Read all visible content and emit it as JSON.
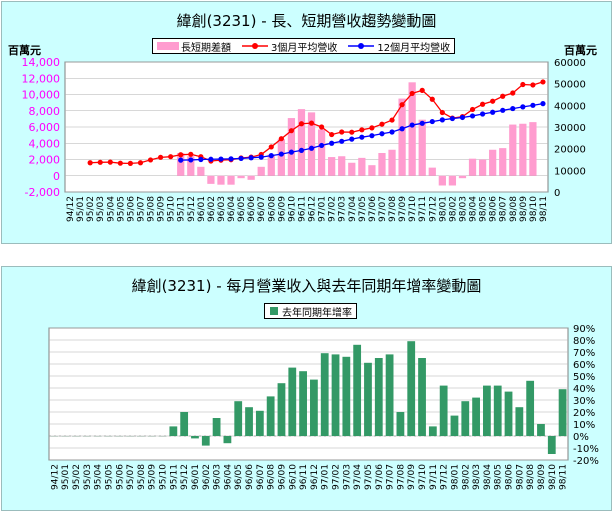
{
  "chart_data": [
    {
      "type": "bar",
      "title": "緯創(3231) -  長、短期營收趨勢變動圖",
      "left_axis_label": "百萬元",
      "right_axis_label": "百萬元",
      "y_left_ticks": [
        "-2,000",
        "0",
        "2,000",
        "4,000",
        "6,000",
        "8,000",
        "10,000",
        "12,000",
        "14,000"
      ],
      "y_left_lim": [
        -2000,
        14000
      ],
      "y_right_ticks": [
        "0",
        "10000",
        "20000",
        "30000",
        "40000",
        "50000",
        "60000"
      ],
      "y_right_lim": [
        0,
        60000
      ],
      "categories": [
        "94/12",
        "95/01",
        "95/02",
        "95/03",
        "95/04",
        "95/05",
        "95/06",
        "95/07",
        "95/08",
        "95/09",
        "95/10",
        "95/11",
        "95/12",
        "96/01",
        "96/02",
        "96/03",
        "96/04",
        "96/05",
        "96/06",
        "96/07",
        "96/08",
        "96/09",
        "96/10",
        "96/11",
        "96/12",
        "97/01",
        "97/02",
        "97/03",
        "97/04",
        "97/05",
        "97/06",
        "97/07",
        "97/08",
        "97/09",
        "97/10",
        "97/11",
        "97/12",
        "98/01",
        "98/02",
        "98/03",
        "98/04",
        "98/05",
        "98/06",
        "98/07",
        "98/08",
        "98/09",
        "98/10",
        "98/11"
      ],
      "series": [
        {
          "name": "長短期差額",
          "kind": "bar",
          "axis": "left",
          "color": "#ff9ccf",
          "values": [
            null,
            null,
            null,
            null,
            null,
            null,
            null,
            null,
            null,
            null,
            null,
            2800,
            2400,
            1100,
            -1000,
            -1100,
            -1100,
            -300,
            -500,
            1100,
            2600,
            4500,
            7100,
            8200,
            7800,
            5700,
            2300,
            2400,
            1600,
            2200,
            1300,
            2800,
            3200,
            9500,
            11500,
            6900,
            1000,
            -1200,
            -1200,
            -300,
            2100,
            2000,
            3200,
            3400,
            6300,
            6400,
            6600,
            null
          ]
        },
        {
          "name": "3個月平均營收",
          "kind": "line",
          "axis": "right",
          "color": "#ff0000",
          "values": [
            null,
            null,
            13500,
            13700,
            13800,
            13300,
            13200,
            13500,
            14800,
            16000,
            16300,
            17200,
            17400,
            16300,
            14300,
            14700,
            14900,
            15700,
            16100,
            17300,
            20800,
            24600,
            28300,
            31500,
            31800,
            30000,
            26500,
            27700,
            27600,
            28700,
            29600,
            31300,
            33200,
            40300,
            45500,
            46900,
            42800,
            36700,
            34100,
            34800,
            38100,
            40500,
            41900,
            44200,
            45700,
            49600,
            49400,
            50800
          ]
        },
        {
          "name": "12個月平均營收",
          "kind": "line",
          "axis": "right",
          "color": "#0000ff",
          "values": [
            null,
            null,
            null,
            null,
            null,
            null,
            null,
            null,
            null,
            null,
            null,
            14700,
            14800,
            15000,
            15100,
            15200,
            15300,
            15500,
            15800,
            16100,
            16800,
            17500,
            18400,
            19200,
            20200,
            21500,
            22500,
            23400,
            24400,
            25300,
            26000,
            26900,
            27700,
            29200,
            30900,
            31700,
            32500,
            33300,
            33900,
            34400,
            35100,
            36000,
            36800,
            37700,
            38500,
            39300,
            40000,
            40800
          ]
        }
      ]
    },
    {
      "type": "bar",
      "title": "緯創(3231) -  每月營業收入與去年同期年增率變動圖",
      "y_right_ticks": [
        "90%",
        "80%",
        "70%",
        "60%",
        "50%",
        "40%",
        "30%",
        "20%",
        "10%",
        "0%",
        "-10%",
        "-20%"
      ],
      "ylim": [
        -20,
        90
      ],
      "categories": [
        "94/12",
        "95/01",
        "95/02",
        "95/03",
        "95/04",
        "95/05",
        "95/06",
        "95/07",
        "95/08",
        "95/09",
        "95/10",
        "95/11",
        "95/12",
        "96/01",
        "96/02",
        "96/03",
        "96/04",
        "96/05",
        "96/06",
        "96/07",
        "96/08",
        "96/09",
        "96/10",
        "96/11",
        "96/12",
        "97/01",
        "97/02",
        "97/03",
        "97/04",
        "97/05",
        "97/06",
        "97/07",
        "97/08",
        "97/09",
        "97/10",
        "97/11",
        "97/12",
        "98/01",
        "98/02",
        "98/03",
        "98/04",
        "98/05",
        "98/06",
        "98/07",
        "98/08",
        "98/09",
        "98/10",
        "98/11"
      ],
      "series": [
        {
          "name": "去年同期年增率",
          "kind": "bar",
          "color": "#339966",
          "values": [
            0,
            0,
            0,
            0,
            0,
            0,
            0,
            0,
            0,
            0,
            0,
            8,
            20,
            -2,
            -8,
            15,
            -6,
            29,
            24,
            21,
            33,
            44,
            57,
            54,
            47,
            69,
            68,
            66,
            76,
            61,
            65,
            68,
            20,
            79,
            65,
            8,
            42,
            17,
            29,
            32,
            42,
            42,
            37,
            24,
            46,
            10,
            -15,
            39
          ]
        }
      ]
    }
  ]
}
